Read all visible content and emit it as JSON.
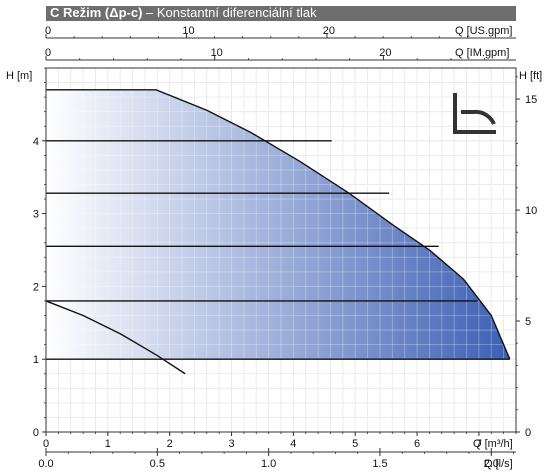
{
  "header": {
    "title_bold": "C Režim (Δp-c)",
    "title_rest": " – Konstantní diferenciální tlak"
  },
  "colors": {
    "header_bg": "#6e6e6e",
    "fill_light": "#ffffff",
    "fill_dark": "#3c5fb4",
    "curve": "#111111",
    "grid": "#dddddd"
  },
  "icon": "constant-pressure-mode-icon",
  "chart_data": {
    "type": "area",
    "axes": {
      "x_bottom_1": {
        "label": "Q [m³/h]",
        "range": [
          0,
          7.6
        ],
        "ticks": [
          "0",
          "1",
          "2",
          "3",
          "4",
          "5",
          "6",
          "7"
        ]
      },
      "x_bottom_2": {
        "label": "Q [l/s]",
        "range": [
          0,
          2.111
        ],
        "ticks": [
          "0.0",
          "0.5",
          "1.0",
          "1.5",
          "2.0"
        ]
      },
      "x_top_1": {
        "label": "Q [US.gpm]",
        "range": [
          0,
          33.46
        ],
        "ticks": [
          "0",
          "10",
          "20"
        ]
      },
      "x_top_2": {
        "label": "Q [IM.gpm]",
        "range": [
          0,
          27.86
        ],
        "ticks": [
          "0",
          "10",
          "20"
        ]
      },
      "y_left": {
        "label": "H [m]",
        "range": [
          0,
          5.0
        ],
        "ticks": [
          "0",
          "1",
          "2",
          "3",
          "4"
        ]
      },
      "y_right": {
        "label": "H [ft]",
        "range": [
          0,
          16.4
        ],
        "ticks": [
          "0",
          "5",
          "10",
          "15"
        ]
      },
      "grid": true
    },
    "envelope": {
      "x": [
        0,
        1.78,
        2.6,
        3.3,
        4.1,
        4.9,
        5.6,
        6.2,
        6.75,
        7.2,
        7.5
      ],
      "y": [
        4.7,
        4.7,
        4.42,
        4.12,
        3.72,
        3.28,
        2.85,
        2.5,
        2.1,
        1.6,
        1.0
      ]
    },
    "setpoint_lines": [
      {
        "h": 4.0,
        "q_max": 4.62
      },
      {
        "h": 3.28,
        "q_max": 5.55
      },
      {
        "h": 2.55,
        "q_max": 6.35
      },
      {
        "h": 1.8,
        "q_max": 6.98
      },
      {
        "h": 1.0,
        "q_max": 7.5
      }
    ],
    "minimum_curve": {
      "x": [
        0,
        0.6,
        1.2,
        1.8,
        2.25
      ],
      "y": [
        1.8,
        1.6,
        1.35,
        1.05,
        0.8
      ]
    }
  }
}
